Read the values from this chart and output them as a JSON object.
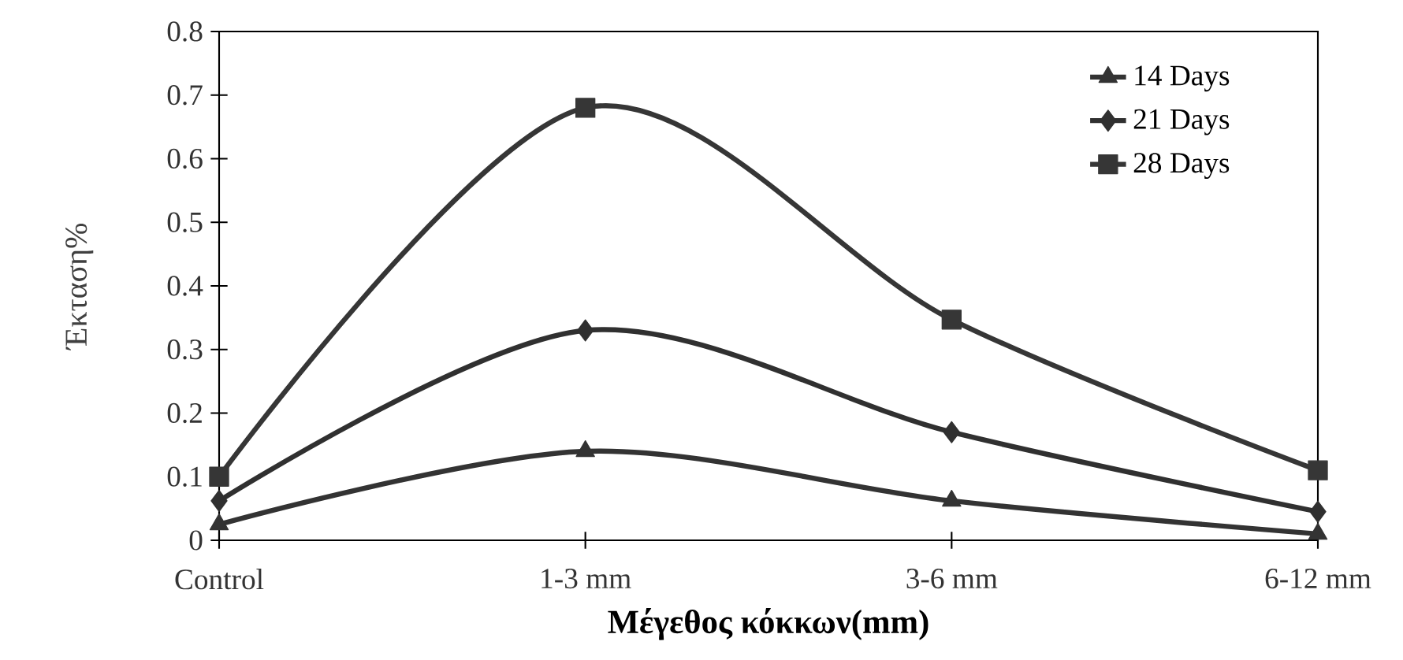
{
  "chart_data": {
    "type": "line",
    "xlabel": "**Μέγεθος κόκκων(mm)**",
    "ylabel": "Έκταση%",
    "categories": [
      "Control",
      "1-3 mm",
      "3-6 mm",
      "6-12 mm"
    ],
    "series": [
      {
        "name": "14 Days",
        "color": "#333333",
        "marker": "triangle",
        "values": [
          0.025,
          0.14,
          0.062,
          0.01
        ]
      },
      {
        "name": "21 Days",
        "color": "#303030",
        "marker": "diamond",
        "values": [
          0.062,
          0.33,
          0.17,
          0.045
        ]
      },
      {
        "name": "28 Days",
        "color": "#363636",
        "marker": "square",
        "values": [
          0.1,
          0.68,
          0.347,
          0.11
        ]
      }
    ],
    "ylim": [
      0,
      0.8
    ],
    "yticks": [
      0,
      0.1,
      0.2,
      0.3,
      0.4,
      0.5,
      0.6,
      0.7,
      0.8
    ],
    "grid": false,
    "legend": "top right",
    "line_style": "solid"
  }
}
